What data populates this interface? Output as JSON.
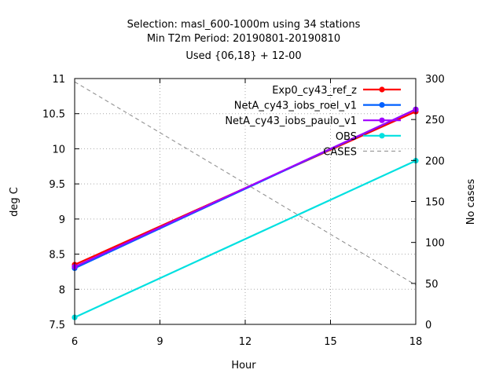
{
  "chart_data": {
    "type": "line",
    "title_lines": [
      "Selection: masl_600-1000m using    34 stations",
      "Min T2m   Period: 20190801-20190810",
      "Used {06,18} + 12-00"
    ],
    "xlabel": "Hour",
    "ylabel": "deg C",
    "y2label": "No cases",
    "x_ticks": [
      "6",
      "9",
      "12",
      "15",
      "18"
    ],
    "y_ticks": [
      "7.5",
      "8",
      "8.5",
      "9",
      "9.5",
      "10",
      "10.5",
      "11"
    ],
    "y2_ticks": [
      "0",
      "50",
      "100",
      "150",
      "200",
      "250",
      "300"
    ],
    "xlim": [
      6,
      18
    ],
    "ylim": [
      7.5,
      11
    ],
    "y2lim": [
      0,
      300
    ],
    "grid": true,
    "legend_position": "top-right",
    "x": [
      6,
      18
    ],
    "series": [
      {
        "name": "Exp0_cy43_ref_z",
        "color": "#ff0000",
        "axis": "y",
        "values": [
          8.35,
          10.53
        ]
      },
      {
        "name": "NetA_cy43_iobs_roel_v1",
        "color": "#0060ff",
        "axis": "y",
        "values": [
          8.3,
          10.56
        ]
      },
      {
        "name": "NetA_cy43_iobs_paulo_v1",
        "color": "#a000ff",
        "axis": "y",
        "values": [
          8.32,
          10.56
        ]
      },
      {
        "name": "OBS",
        "color": "#00e0e0",
        "axis": "y",
        "values": [
          7.6,
          9.83
        ]
      },
      {
        "name": "CASES",
        "color": "#888888",
        "axis": "y2",
        "dashed": true,
        "values": [
          296,
          48
        ]
      }
    ]
  }
}
